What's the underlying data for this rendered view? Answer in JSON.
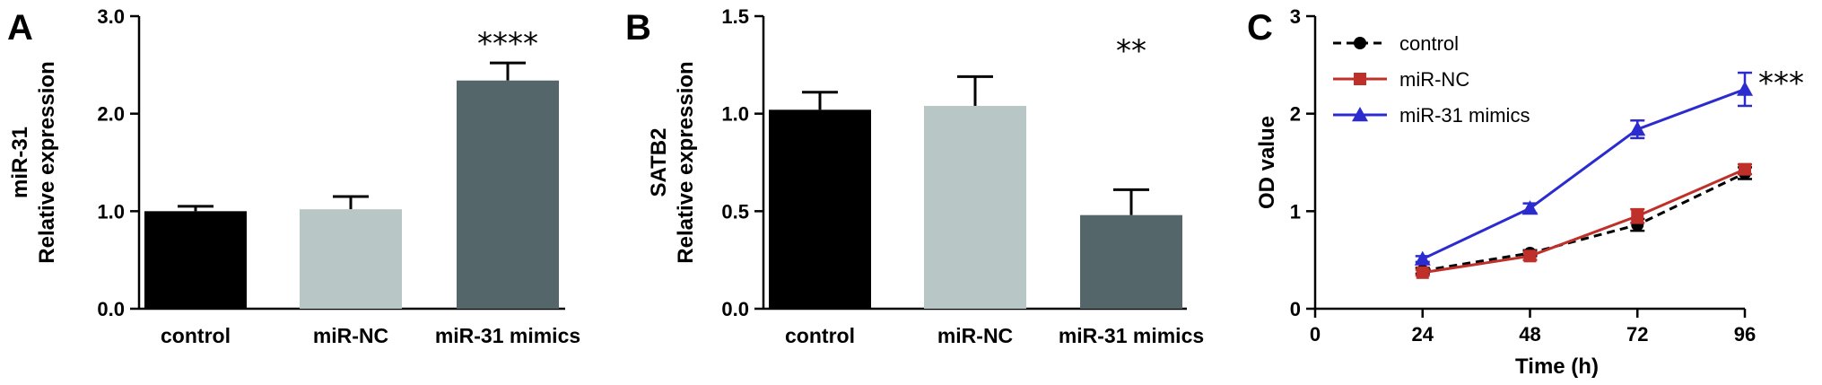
{
  "chart_data": [
    {
      "type": "bar",
      "panel": "A",
      "ylabel": [
        "miR-31",
        "Relative expression"
      ],
      "categories": [
        "control",
        "miR-NC",
        "miR-31 mimics"
      ],
      "values": [
        1.0,
        1.02,
        2.34
      ],
      "errors": [
        0.05,
        0.13,
        0.18
      ],
      "colors": [
        "#000000",
        "#b9c6c6",
        "#54666a"
      ],
      "ylim": [
        0,
        3.0
      ],
      "yticks": [
        "0.0",
        "1.0",
        "2.0",
        "3.0"
      ],
      "yticks_values": [
        0,
        1,
        2,
        3
      ],
      "significance": "****",
      "significance_index": 2
    },
    {
      "type": "bar",
      "panel": "B",
      "ylabel": [
        "SATB2",
        "Relative expression"
      ],
      "categories": [
        "control",
        "miR-NC",
        "miR-31 mimics"
      ],
      "values": [
        1.02,
        1.04,
        0.48
      ],
      "errors": [
        0.09,
        0.15,
        0.13
      ],
      "colors": [
        "#000000",
        "#b9c6c6",
        "#54666a"
      ],
      "ylim": [
        0,
        1.5
      ],
      "yticks": [
        "0.0",
        "0.5",
        "1.0",
        "1.5"
      ],
      "yticks_values": [
        0,
        0.5,
        1.0,
        1.5
      ],
      "significance": "**",
      "significance_index": 2
    },
    {
      "type": "line",
      "panel": "C",
      "ylabel": "OD value",
      "xlabel": "Time (h)",
      "x": [
        24,
        48,
        72,
        96
      ],
      "xlim": [
        0,
        96
      ],
      "xticks": [
        "0",
        "24",
        "48",
        "72",
        "96"
      ],
      "xticks_values": [
        0,
        24,
        48,
        72,
        96
      ],
      "ylim": [
        0,
        3
      ],
      "yticks": [
        "0",
        "1",
        "2",
        "3"
      ],
      "yticks_values": [
        0,
        1,
        2,
        3
      ],
      "legend_position": "top-left",
      "significance": "***",
      "series": [
        {
          "name": "control",
          "values": [
            0.39,
            0.57,
            0.86,
            1.39
          ],
          "errors": [
            0.03,
            0.03,
            0.06,
            0.06
          ],
          "color": "#000000",
          "marker": "circle",
          "dash": true
        },
        {
          "name": "miR-NC",
          "values": [
            0.37,
            0.54,
            0.95,
            1.43
          ],
          "errors": [
            0.03,
            0.04,
            0.07,
            0.05
          ],
          "color": "#c0302b",
          "marker": "square",
          "dash": false
        },
        {
          "name": "miR-31 mimics",
          "values": [
            0.51,
            1.03,
            1.84,
            2.25
          ],
          "errors": [
            0.03,
            0.05,
            0.09,
            0.17
          ],
          "color": "#2b2bd0",
          "marker": "triangle",
          "dash": false
        }
      ]
    }
  ]
}
